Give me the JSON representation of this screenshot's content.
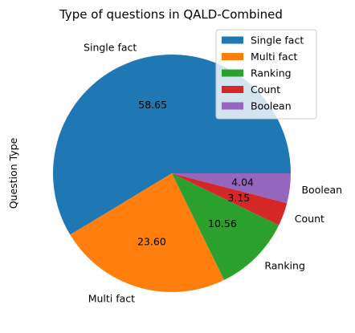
{
  "chart_data": {
    "type": "pie",
    "title": "Type of questions in QALD-Combined",
    "ylabel": "Question Type",
    "labels": [
      "Single fact",
      "Multi fact",
      "Ranking",
      "Count",
      "Boolean"
    ],
    "values": [
      58.65,
      23.6,
      10.56,
      3.15,
      4.04
    ],
    "value_labels": [
      "58.65",
      "23.60",
      "10.56",
      "3.15",
      "4.04"
    ],
    "colors": [
      "#1f77b4",
      "#ff7f0e",
      "#2ca02c",
      "#d62728",
      "#9467bd"
    ],
    "start_angle_deg": 0,
    "direction": "counterclockwise",
    "legend_position": "top-right"
  }
}
